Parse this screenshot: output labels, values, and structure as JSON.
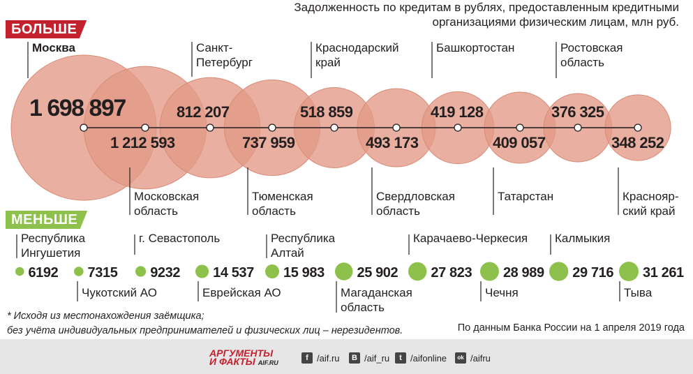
{
  "title": "Задолженность по кредитам в рублях, предоставленным кредитными организациями физическим лицам, млн руб.",
  "more_label": "БОЛЬШЕ",
  "less_label": "МЕНЬШЕ",
  "colors": {
    "bubble": "#e39a86",
    "bubble_stroke": "#d98a76",
    "red": "#c4212f",
    "green": "#8dc14b",
    "dot": "#8dc14b"
  },
  "chart_data": [
    {
      "type": "bubble",
      "series_name": "БОЛЬШЕ",
      "categories": [
        "Москва",
        "Московская область",
        "Санкт-Петербург",
        "Тюменская область",
        "Краснодарский край",
        "Свердловская область",
        "Башкортостан",
        "Татарстан",
        "Ростовская область",
        "Красноярский край"
      ],
      "label_lines": [
        [
          "Москва"
        ],
        [
          "Московская",
          "область"
        ],
        [
          "Санкт-",
          "Петербург"
        ],
        [
          "Тюменская",
          "область"
        ],
        [
          "Краснодарский",
          "край"
        ],
        [
          "Свердловская",
          "область"
        ],
        [
          "Башкортостан"
        ],
        [
          "Татарстан"
        ],
        [
          "Ростовская",
          "область"
        ],
        [
          "Краснояр-",
          "ский край"
        ]
      ],
      "value_labels": [
        "1 698 897",
        "1 212 593",
        "812 207",
        "737 959",
        "518 859",
        "493 173",
        "419 128",
        "409 057",
        "376 325",
        "348 252"
      ],
      "values": [
        1698897,
        1212593,
        812207,
        737959,
        518859,
        493173,
        419128,
        409057,
        376325,
        348252
      ]
    },
    {
      "type": "bubble",
      "series_name": "МЕНЬШЕ",
      "categories": [
        "Республика Ингушетия",
        "Чукотский АО",
        "г. Севастополь",
        "Еврейская АО",
        "Республика Алтай",
        "Магаданская область",
        "Карачаево-Черкесия",
        "Чечня",
        "Калмыкия",
        "Тыва"
      ],
      "label_lines": [
        [
          "Республика",
          "Ингушетия"
        ],
        [
          "Чукотский АО"
        ],
        [
          "г. Севастополь"
        ],
        [
          "Еврейская АО"
        ],
        [
          "Республика",
          "Алтай"
        ],
        [
          "Магаданская",
          "область"
        ],
        [
          "Карачаево-Черкесия"
        ],
        [
          "Чечня"
        ],
        [
          "Калмыкия"
        ],
        [
          "Тыва"
        ]
      ],
      "value_labels": [
        "6192",
        "7315",
        "9232",
        "14 537",
        "15 983",
        "25 902",
        "27 823",
        "28 989",
        "29 716",
        "31 261"
      ],
      "values": [
        6192,
        7315,
        9232,
        14537,
        15983,
        25902,
        27823,
        28989,
        29716,
        31261
      ]
    }
  ],
  "footnote_lines": [
    "* Исходя из местонахождения заёмщика;",
    "без учёта индивидуальных предпринимателей и физических лиц – нерезидентов."
  ],
  "source": "По данным Банка России на 1 апреля 2019 года",
  "logo": {
    "line1": "АРГУМЕНТЫ",
    "line2": "И ФАКТЫ",
    "domain": "AIF.RU"
  },
  "social": [
    {
      "icon": "facebook-icon",
      "glyph": "f",
      "label": "/aif.ru"
    },
    {
      "icon": "vk-icon",
      "glyph": "В",
      "label": "/aif_ru"
    },
    {
      "icon": "twitter-icon",
      "glyph": "t",
      "label": "/aifonline"
    },
    {
      "icon": "odnoklassniki-icon",
      "glyph": "ok",
      "label": "/aifru"
    }
  ]
}
